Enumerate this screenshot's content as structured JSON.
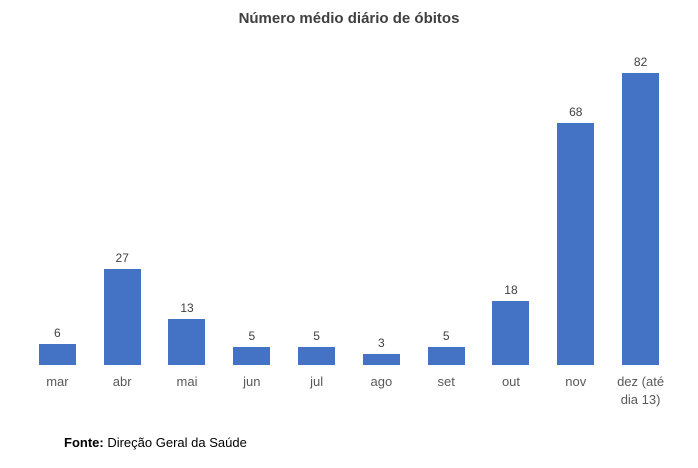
{
  "title": "Número médio diário de óbitos",
  "footer": {
    "label": "Fonte:",
    "text": " Direção Geral da Saúde"
  },
  "chart_data": {
    "type": "bar",
    "title": "Número médio diário de óbitos",
    "categories": [
      "mar",
      "abr",
      "mai",
      "jun",
      "jul",
      "ago",
      "set",
      "out",
      "nov",
      "dez (até dia 13)"
    ],
    "values": [
      6,
      27,
      13,
      5,
      5,
      3,
      5,
      18,
      68,
      82
    ],
    "xlabel": "",
    "ylabel": "",
    "ylim": [
      0,
      90
    ],
    "grid": false,
    "legend": false,
    "data_labels": true,
    "bar_color": "#4472C4",
    "data_label_color": "#404040",
    "category_label_color": "#595959",
    "title_color": "#404040"
  }
}
